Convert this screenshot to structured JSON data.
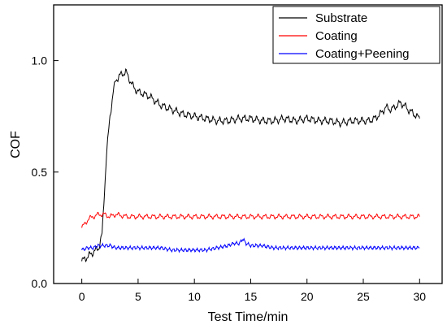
{
  "chart_data": {
    "type": "line",
    "title": "",
    "xlabel": "Test Time/min",
    "ylabel": "COF",
    "xlim": [
      -2.5,
      32
    ],
    "ylim": [
      0,
      1.25
    ],
    "xticks": [
      0,
      5,
      10,
      15,
      20,
      25,
      30
    ],
    "yticks": [
      0.0,
      0.5,
      1.0
    ],
    "ytick_labels": [
      "0.0",
      "0.5",
      "1.0"
    ],
    "grid": false,
    "legend_position": "top-right",
    "series": [
      {
        "name": "Substrate",
        "color": "#000000",
        "x": [
          0,
          0.5,
          1.0,
          1.5,
          1.8,
          2.0,
          2.2,
          2.5,
          2.8,
          3.0,
          3.3,
          3.6,
          3.9,
          4.2,
          4.6,
          5.0,
          5.5,
          6.0,
          6.5,
          7.0,
          7.5,
          8.0,
          8.5,
          9.0,
          10.0,
          11.0,
          12.0,
          13.0,
          14.0,
          15.0,
          16.0,
          17.0,
          18.0,
          19.0,
          20.0,
          21.0,
          22.0,
          23.0,
          24.0,
          25.0,
          25.5,
          26.0,
          26.5,
          27.0,
          27.5,
          28.0,
          28.3,
          28.6,
          29.0,
          29.5,
          30.0
        ],
        "y": [
          0.1,
          0.12,
          0.14,
          0.16,
          0.22,
          0.4,
          0.58,
          0.75,
          0.86,
          0.91,
          0.93,
          0.94,
          0.95,
          0.92,
          0.88,
          0.86,
          0.85,
          0.84,
          0.82,
          0.8,
          0.79,
          0.78,
          0.77,
          0.76,
          0.75,
          0.74,
          0.73,
          0.73,
          0.74,
          0.74,
          0.73,
          0.73,
          0.74,
          0.73,
          0.74,
          0.73,
          0.73,
          0.72,
          0.73,
          0.73,
          0.73,
          0.74,
          0.76,
          0.79,
          0.78,
          0.8,
          0.81,
          0.8,
          0.78,
          0.76,
          0.74
        ]
      },
      {
        "name": "Coating",
        "color": "#ff0000",
        "x": [
          0,
          0.3,
          0.6,
          1.0,
          1.5,
          2.0,
          2.5,
          3.0,
          4.0,
          5.0,
          6.0,
          8.0,
          10.0,
          12.0,
          14.0,
          16.0,
          18.0,
          20.0,
          22.0,
          24.0,
          26.0,
          28.0,
          29.0,
          30.0
        ],
        "y": [
          0.25,
          0.27,
          0.29,
          0.3,
          0.31,
          0.31,
          0.3,
          0.31,
          0.3,
          0.3,
          0.3,
          0.3,
          0.3,
          0.3,
          0.3,
          0.3,
          0.3,
          0.3,
          0.3,
          0.3,
          0.3,
          0.3,
          0.3,
          0.3
        ]
      },
      {
        "name": "Coating+Peening",
        "color": "#0000ff",
        "x": [
          0,
          0.5,
          1.0,
          1.5,
          2.0,
          2.5,
          3.0,
          4.0,
          5.0,
          6.0,
          7.0,
          8.0,
          9.0,
          10.0,
          11.0,
          12.0,
          13.0,
          13.5,
          14.0,
          14.3,
          14.6,
          15.0,
          16.0,
          17.0,
          18.0,
          19.0,
          20.0,
          22.0,
          24.0,
          26.0,
          28.0,
          30.0
        ],
        "y": [
          0.15,
          0.16,
          0.16,
          0.17,
          0.17,
          0.17,
          0.16,
          0.16,
          0.16,
          0.16,
          0.16,
          0.15,
          0.15,
          0.15,
          0.15,
          0.16,
          0.17,
          0.18,
          0.18,
          0.2,
          0.18,
          0.17,
          0.17,
          0.16,
          0.16,
          0.16,
          0.16,
          0.16,
          0.16,
          0.16,
          0.16,
          0.16
        ]
      }
    ]
  }
}
